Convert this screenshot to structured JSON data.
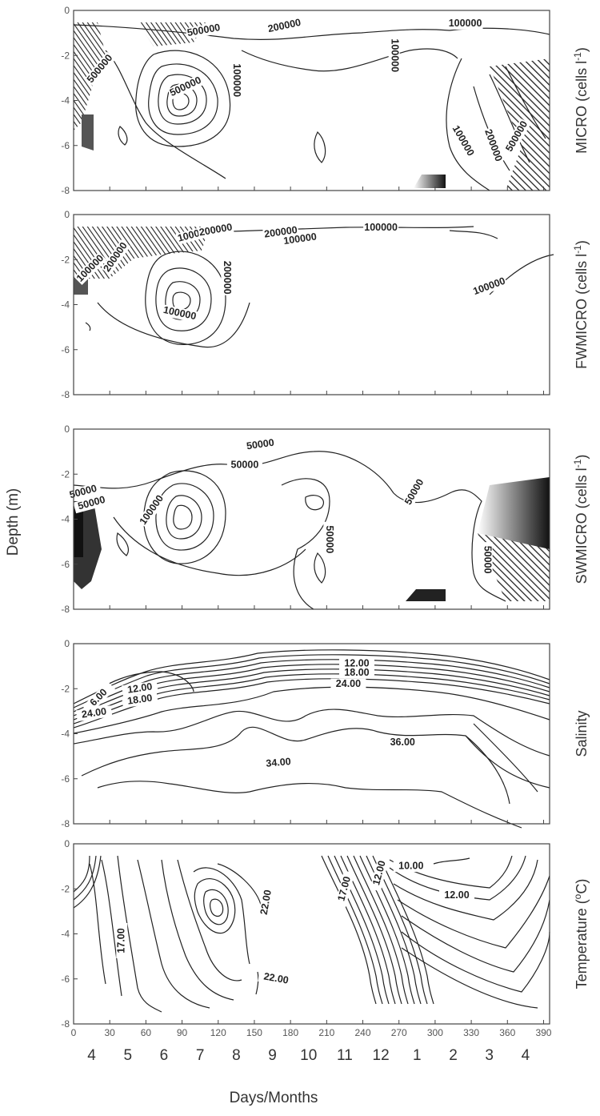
{
  "chart_data": {
    "type": "contour",
    "shared": {
      "xlabel": "Days/Months",
      "ylabel": "Depth (m)",
      "xlim": [
        0,
        395
      ],
      "ylim": [
        -8,
        0
      ],
      "x_ticks": [
        "0",
        "30",
        "60",
        "90",
        "120",
        "150",
        "180",
        "210",
        "240",
        "270",
        "300",
        "330",
        "360",
        "390"
      ],
      "y_ticks": [
        "0",
        "-2",
        "-4",
        "-6",
        "-8"
      ],
      "months": [
        "4",
        "5",
        "6",
        "7",
        "8",
        "9",
        "10",
        "11",
        "12",
        "1",
        "2",
        "3",
        "4"
      ]
    },
    "panels": [
      {
        "id": "micro",
        "label": "MICRO (cells l",
        "label_sup": "-1",
        "label_end": ")",
        "contour_labels": [
          {
            "text": "500000",
            "x": 22,
            "y": -2.6,
            "angle": -50
          },
          {
            "text": "500000",
            "x": 108,
            "y": -0.9,
            "angle": -10
          },
          {
            "text": "200000",
            "x": 175,
            "y": -0.7,
            "angle": -12
          },
          {
            "text": "500000",
            "x": 93,
            "y": -3.4,
            "angle": -25
          },
          {
            "text": "100000",
            "x": 135,
            "y": -3.1,
            "angle": 90
          },
          {
            "text": "100000",
            "x": 266,
            "y": -2.0,
            "angle": 90
          },
          {
            "text": "100000",
            "x": 325,
            "y": -0.6,
            "angle": 0
          },
          {
            "text": "100000",
            "x": 323,
            "y": -5.8,
            "angle": 60
          },
          {
            "text": "200000",
            "x": 348,
            "y": -6.0,
            "angle": 70
          },
          {
            "text": "500000",
            "x": 368,
            "y": -5.6,
            "angle": -60
          }
        ]
      },
      {
        "id": "fwmicro",
        "label": "FWMICRO (cells l",
        "label_sup": "-1",
        "label_end": ")",
        "contour_labels": [
          {
            "text": "100000",
            "x": 14,
            "y": -2.4,
            "angle": -45
          },
          {
            "text": "200000",
            "x": 35,
            "y": -1.9,
            "angle": -55
          },
          {
            "text": "100000",
            "x": 100,
            "y": -0.9,
            "angle": -15
          },
          {
            "text": "200000",
            "x": 118,
            "y": -0.7,
            "angle": -10
          },
          {
            "text": "200000",
            "x": 172,
            "y": -0.8,
            "angle": -8
          },
          {
            "text": "100000",
            "x": 188,
            "y": -1.1,
            "angle": -8
          },
          {
            "text": "100000",
            "x": 255,
            "y": -0.6,
            "angle": 0
          },
          {
            "text": "200000",
            "x": 127,
            "y": -2.8,
            "angle": 90
          },
          {
            "text": "100000",
            "x": 88,
            "y": -4.4,
            "angle": 12
          },
          {
            "text": "100000",
            "x": 345,
            "y": -3.2,
            "angle": -20
          }
        ]
      },
      {
        "id": "swmicro",
        "label": "SWMICRO (cells l",
        "label_sup": "-1",
        "label_end": ")",
        "contour_labels": [
          {
            "text": "50000",
            "x": 155,
            "y": -0.7,
            "angle": -8
          },
          {
            "text": "50000",
            "x": 142,
            "y": -1.6,
            "angle": 0
          },
          {
            "text": "50000",
            "x": 8,
            "y": -2.8,
            "angle": -15
          },
          {
            "text": "50000",
            "x": 15,
            "y": -3.3,
            "angle": -15
          },
          {
            "text": "100000",
            "x": 65,
            "y": -3.6,
            "angle": -55
          },
          {
            "text": "50000",
            "x": 283,
            "y": -2.8,
            "angle": -60
          },
          {
            "text": "50000",
            "x": 212,
            "y": -4.9,
            "angle": 90
          },
          {
            "text": "50000",
            "x": 343,
            "y": -5.8,
            "angle": 90
          }
        ]
      },
      {
        "id": "salinity",
        "label": "Salinity",
        "contour_labels": [
          {
            "text": "6.00",
            "x": 21,
            "y": -2.4,
            "angle": -45
          },
          {
            "text": "12.00",
            "x": 55,
            "y": -2.0,
            "angle": -8
          },
          {
            "text": "18.00",
            "x": 55,
            "y": -2.5,
            "angle": -8
          },
          {
            "text": "24.00",
            "x": 17,
            "y": -3.1,
            "angle": -8
          },
          {
            "text": "12.00",
            "x": 235,
            "y": -0.9,
            "angle": 0
          },
          {
            "text": "18.00",
            "x": 235,
            "y": -1.3,
            "angle": 0
          },
          {
            "text": "24.00",
            "x": 228,
            "y": -1.8,
            "angle": 0
          },
          {
            "text": "34.00",
            "x": 170,
            "y": -5.3,
            "angle": -5
          },
          {
            "text": "36.00",
            "x": 273,
            "y": -4.4,
            "angle": 0
          }
        ]
      },
      {
        "id": "temperature",
        "label": "Temperature (",
        "label_sup": "o",
        "label_end": "C)",
        "contour_labels": [
          {
            "text": "17.00",
            "x": 40,
            "y": -4.3,
            "angle": -90
          },
          {
            "text": "22.00",
            "x": 160,
            "y": -2.6,
            "angle": -80
          },
          {
            "text": "22.00",
            "x": 168,
            "y": -6.0,
            "angle": 10
          },
          {
            "text": "17.00",
            "x": 225,
            "y": -2.0,
            "angle": -75
          },
          {
            "text": "12.00",
            "x": 254,
            "y": -1.3,
            "angle": -75
          },
          {
            "text": "10.00",
            "x": 280,
            "y": -1.0,
            "angle": 0
          },
          {
            "text": "12.00",
            "x": 318,
            "y": -2.3,
            "angle": 0
          }
        ]
      }
    ]
  }
}
